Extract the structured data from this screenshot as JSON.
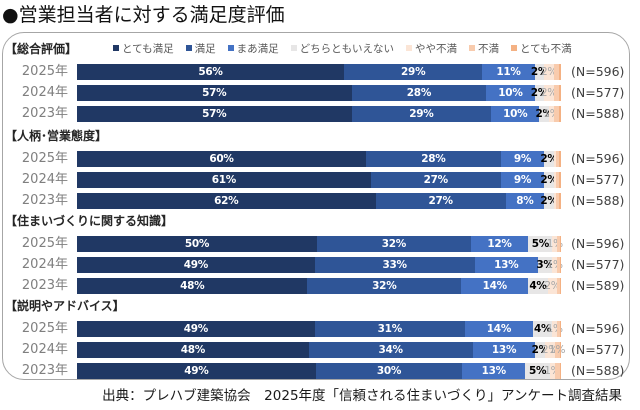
{
  "title": "●営業担当者に対する満足度評価",
  "footer": "出典：プレハブ建築協会　2025年度「信頼される住まいづくり」アンケート調査結果",
  "chart_data": {
    "type": "bar",
    "orientation": "horizontal",
    "stacked": true,
    "percent": true,
    "title": "●営業担当者に対する満足度評価",
    "xlabel": "",
    "ylabel": "",
    "xlim": [
      0,
      100
    ],
    "grid": false,
    "legend_position": "top",
    "series": [
      {
        "name": "とても満足",
        "color": "#203864"
      },
      {
        "name": "満足",
        "color": "#2f5597"
      },
      {
        "name": "まあ満足",
        "color": "#4472c4"
      },
      {
        "name": "どちらともいえない",
        "color": "#e7e6e6"
      },
      {
        "name": "やや不満",
        "color": "#fbe5d6"
      },
      {
        "name": "不満",
        "color": "#f8cbad"
      },
      {
        "name": "とても不満",
        "color": "#f4b183"
      }
    ],
    "groups": [
      {
        "name": "【総合評価】",
        "rows": [
          {
            "year": "2025年",
            "n": "(N=596)",
            "values": [
              56,
              29,
              11,
              2,
              2,
              1,
              0.5
            ],
            "labels": [
              "56%",
              "29%",
              "11%",
              "2%",
              "2%",
              null,
              null
            ]
          },
          {
            "year": "2024年",
            "n": "(N=577)",
            "values": [
              57,
              28,
              10,
              2,
              2,
              1,
              0.5
            ],
            "labels": [
              "57%",
              "28%",
              "10%",
              "2%",
              "2%",
              null,
              null
            ]
          },
          {
            "year": "2023年",
            "n": "(N=588)",
            "values": [
              57,
              29,
              10,
              2,
              1,
              1,
              0.5
            ],
            "labels": [
              "57%",
              "29%",
              "10%",
              "2%",
              "1%",
              null,
              null
            ]
          }
        ]
      },
      {
        "name": "【人柄･営業態度】",
        "rows": [
          {
            "year": "2025年",
            "n": "(N=596)",
            "values": [
              60,
              28,
              9,
              2,
              0.5,
              0.5,
              0.5
            ],
            "labels": [
              "60%",
              "28%",
              "9%",
              "2%",
              null,
              null,
              null
            ]
          },
          {
            "year": "2024年",
            "n": "(N=577)",
            "values": [
              61,
              27,
              9,
              2,
              0.5,
              0.5,
              0.5
            ],
            "labels": [
              "61%",
              "27%",
              "9%",
              "2%",
              null,
              null,
              null
            ]
          },
          {
            "year": "2023年",
            "n": "(N=588)",
            "values": [
              62,
              27,
              8,
              2,
              0.5,
              0.5,
              0.5
            ],
            "labels": [
              "62%",
              "27%",
              "8%",
              "2%",
              null,
              null,
              null
            ]
          }
        ]
      },
      {
        "name": "【住まいづくりに関する知識】",
        "rows": [
          {
            "year": "2025年",
            "n": "(N=596)",
            "values": [
              50,
              32,
              12,
              5,
              1,
              0.5,
              0.3
            ],
            "labels": [
              "50%",
              "32%",
              "12%",
              "5%",
              "1%",
              null,
              null
            ]
          },
          {
            "year": "2024年",
            "n": "(N=577)",
            "values": [
              49,
              33,
              13,
              3,
              1,
              0.5,
              0.3
            ],
            "labels": [
              "49%",
              "33%",
              "13%",
              "3%",
              "1%",
              null,
              null
            ]
          },
          {
            "year": "2023年",
            "n": "(N=589)",
            "values": [
              48,
              32,
              14,
              4,
              2,
              0.5,
              0.3
            ],
            "labels": [
              "48%",
              "32%",
              "14%",
              "4%",
              "2%",
              null,
              null
            ]
          }
        ]
      },
      {
        "name": "【説明やアドバイス】",
        "rows": [
          {
            "year": "2025年",
            "n": "(N=596)",
            "values": [
              49,
              31,
              14,
              4,
              1,
              0.5,
              0.3
            ],
            "labels": [
              "49%",
              "31%",
              "14%",
              "4%",
              "1%",
              null,
              null
            ]
          },
          {
            "year": "2024年",
            "n": "(N=577)",
            "values": [
              48,
              34,
              13,
              2,
              2,
              1,
              0.3
            ],
            "labels": [
              "48%",
              "34%",
              "13%",
              "2%",
              "2%",
              "1%",
              null
            ]
          },
          {
            "year": "2023年",
            "n": "(N=588)",
            "values": [
              49,
              30,
              13,
              5,
              1,
              1,
              0.3
            ],
            "labels": [
              "49%",
              "30%",
              "13%",
              "5%",
              "1%",
              null,
              null
            ]
          }
        ]
      }
    ]
  }
}
